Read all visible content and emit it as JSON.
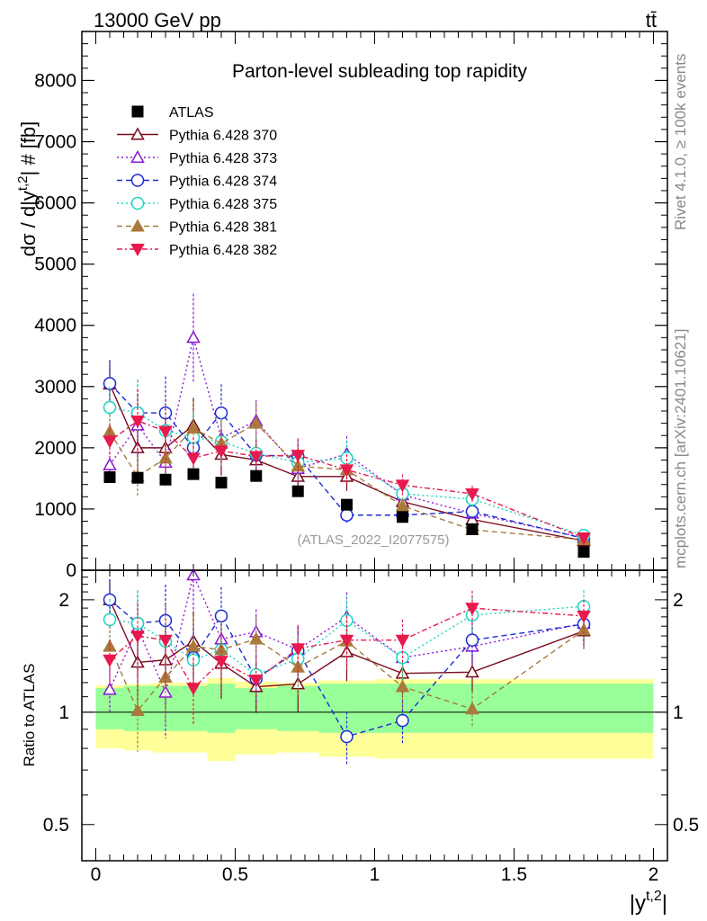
{
  "header": {
    "energy_label": "13000 GeV pp",
    "process_label": "tt̄",
    "rivet_label": "Rivet 4.1.0, ≥ 100k events",
    "mcplots_label": "mcplots.cern.ch [arXiv:2401.10621]"
  },
  "chart_data": {
    "type": "scatter",
    "title": "Parton-level subleading top rapidity",
    "watermark": "(ATLAS_2022_I2077575)",
    "xlabel": "|y",
    "xlabel_sup": "t,2",
    "xlabel_end": "|",
    "ylabel": "dσ / d|y",
    "ylabel_sup": "t,2",
    "ylabel_end": "| # [fb]",
    "ratio_ylabel": "Ratio to ATLAS",
    "xlim": [
      -0.05,
      2.05
    ],
    "ylim": [
      0,
      8800
    ],
    "ratio_ylim": [
      0.4,
      2.4
    ],
    "x_ticks": [
      0,
      0.5,
      1,
      1.5,
      2
    ],
    "x_tick_labels": [
      "0",
      "0.5",
      "1",
      "1.5",
      "2"
    ],
    "y_ticks": [
      0,
      1000,
      2000,
      3000,
      4000,
      5000,
      6000,
      7000,
      8000
    ],
    "y_tick_labels": [
      "0",
      "1000",
      "2000",
      "3000",
      "4000",
      "5000",
      "6000",
      "7000",
      "8000"
    ],
    "ratio_ticks": [
      0.5,
      1,
      2
    ],
    "ratio_tick_labels": [
      "0.5",
      "1",
      "2"
    ],
    "bin_edges": [
      0,
      0.1,
      0.2,
      0.3,
      0.4,
      0.5,
      0.65,
      0.8,
      1.0,
      1.2,
      1.5,
      2.0
    ],
    "x": [
      0.05,
      0.15,
      0.25,
      0.35,
      0.45,
      0.575,
      0.725,
      0.9,
      1.1,
      1.35,
      1.75
    ],
    "data": {
      "name": "ATLAS",
      "values": [
        1520,
        1510,
        1480,
        1570,
        1430,
        1540,
        1290,
        1070,
        870,
        670,
        300
      ],
      "band_stat": [
        0.1,
        0.11,
        0.11,
        0.11,
        0.12,
        0.1,
        0.11,
        0.12,
        0.12,
        0.12,
        0.12
      ],
      "band_total": [
        0.2,
        0.21,
        0.22,
        0.22,
        0.26,
        0.23,
        0.22,
        0.24,
        0.25,
        0.25,
        0.25
      ]
    },
    "series": [
      {
        "name": "Pythia 6.428 370",
        "color": "#7a0a1c",
        "dash": "",
        "marker": "triangle-up-open",
        "values": [
          3040,
          2000,
          2000,
          2370,
          1890,
          1800,
          1530,
          1530,
          1120,
          830,
          480
        ],
        "ratio": [
          2.0,
          1.36,
          1.38,
          1.55,
          1.35,
          1.17,
          1.19,
          1.45,
          1.27,
          1.28,
          1.65
        ]
      },
      {
        "name": "Pythia 6.428 373",
        "color": "#8b16d6",
        "dash": "2,3",
        "marker": "triangle-up-open",
        "values": [
          1720,
          2370,
          1760,
          3800,
          2160,
          2440,
          1660,
          1900,
          1230,
          930,
          530
        ],
        "ratio": [
          1.15,
          1.68,
          1.13,
          2.33,
          1.57,
          1.64,
          1.47,
          1.8,
          1.4,
          1.5,
          1.73
        ]
      },
      {
        "name": "Pythia 6.428 374",
        "color": "#1a2ad6",
        "dash": "6,4",
        "marker": "circle-open",
        "values": [
          3050,
          2570,
          2570,
          2000,
          2570,
          1880,
          1860,
          900,
          900,
          960,
          520
        ],
        "ratio": [
          2.0,
          1.73,
          1.76,
          1.4,
          1.81,
          1.23,
          1.46,
          0.86,
          0.95,
          1.56,
          1.72
        ]
      },
      {
        "name": "Pythia 6.428 375",
        "color": "#1ad6c0",
        "dash": "2,3",
        "marker": "circle-open",
        "values": [
          2660,
          2570,
          2280,
          2170,
          2100,
          1910,
          1760,
          1830,
          1250,
          1160,
          570
        ],
        "ratio": [
          1.77,
          1.73,
          1.55,
          1.38,
          1.47,
          1.26,
          1.39,
          1.76,
          1.4,
          1.82,
          1.92
        ]
      },
      {
        "name": "Pythia 6.428 381",
        "color": "#a87a3c",
        "dash": "6,4",
        "marker": "triangle-up-filled",
        "values": [
          2260,
          1530,
          1830,
          2320,
          2070,
          2400,
          1700,
          1640,
          1050,
          660,
          500
        ],
        "ratio": [
          1.5,
          1.01,
          1.24,
          1.5,
          1.47,
          1.57,
          1.32,
          1.55,
          1.17,
          1.02,
          1.66
        ]
      },
      {
        "name": "Pythia 6.428 382",
        "color": "#e8194d",
        "dash": "6,3,2,3",
        "marker": "triangle-down-filled",
        "values": [
          2110,
          2440,
          2270,
          1830,
          1950,
          1860,
          1880,
          1640,
          1390,
          1250,
          530
        ],
        "ratio": [
          1.38,
          1.6,
          1.56,
          1.16,
          1.37,
          1.22,
          1.48,
          1.56,
          1.56,
          1.9,
          1.81
        ]
      }
    ],
    "legend": [
      "ATLAS",
      "Pythia 6.428 370",
      "Pythia 6.428 373",
      "Pythia 6.428 374",
      "Pythia 6.428 375",
      "Pythia 6.428 381",
      "Pythia 6.428 382"
    ],
    "legend_position": "top-left",
    "colors": {
      "band_total": "#ffff99",
      "band_stat": "#99ff99",
      "data_marker": "#000000"
    }
  }
}
